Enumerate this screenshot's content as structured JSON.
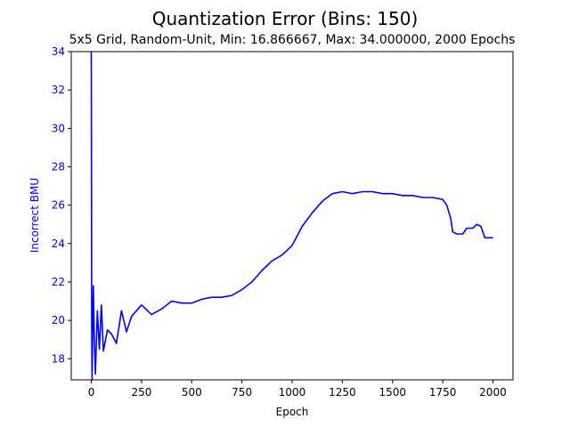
{
  "chart_data": {
    "type": "line",
    "title": "Quantization Error (Bins: 150)",
    "subtitle": "5x5 Grid, Random-Unit, Min: 16.866667, Max: 34.000000, 2000 Epochs",
    "xlabel": "Epoch",
    "ylabel": "Incorrect BMU",
    "xlim": [
      -100,
      2100
    ],
    "ylim": [
      16.9,
      34
    ],
    "x_ticks": [
      0,
      250,
      500,
      750,
      1000,
      1250,
      1500,
      1750,
      2000
    ],
    "y_ticks": [
      18,
      20,
      22,
      24,
      26,
      28,
      30,
      32,
      34
    ],
    "grid": false,
    "colors": {
      "series": "#0000ff",
      "ylabel": "#0000ff",
      "ytick": "#0000ff",
      "axes": "#000000"
    },
    "series": [
      {
        "x": [
          0,
          2,
          4,
          6,
          10,
          15,
          20,
          30,
          40,
          50,
          60,
          80,
          100,
          125,
          150,
          175,
          200,
          250,
          300,
          350,
          400,
          450,
          500,
          550,
          600,
          650,
          700,
          750,
          800,
          850,
          900,
          950,
          1000,
          1050,
          1100,
          1150,
          1200,
          1250,
          1300,
          1350,
          1400,
          1450,
          1500,
          1550,
          1600,
          1650,
          1700,
          1750,
          1770,
          1790,
          1800,
          1820,
          1850,
          1870,
          1900,
          1920,
          1940,
          1960,
          1980,
          2000
        ],
        "y": [
          34,
          19.5,
          16.9,
          19.0,
          21.8,
          19.0,
          17.2,
          20.5,
          18.5,
          20.8,
          18.4,
          19.5,
          19.3,
          18.8,
          20.5,
          19.4,
          20.2,
          20.8,
          20.3,
          20.6,
          21.0,
          20.9,
          20.9,
          21.1,
          21.2,
          21.2,
          21.3,
          21.6,
          22.0,
          22.6,
          23.1,
          23.4,
          23.9,
          24.9,
          25.6,
          26.2,
          26.6,
          26.7,
          26.6,
          26.7,
          26.7,
          26.6,
          26.6,
          26.5,
          26.5,
          26.4,
          26.4,
          26.3,
          26.0,
          25.3,
          24.6,
          24.5,
          24.5,
          24.8,
          24.8,
          25.0,
          24.9,
          24.3,
          24.3,
          24.3
        ]
      }
    ]
  }
}
